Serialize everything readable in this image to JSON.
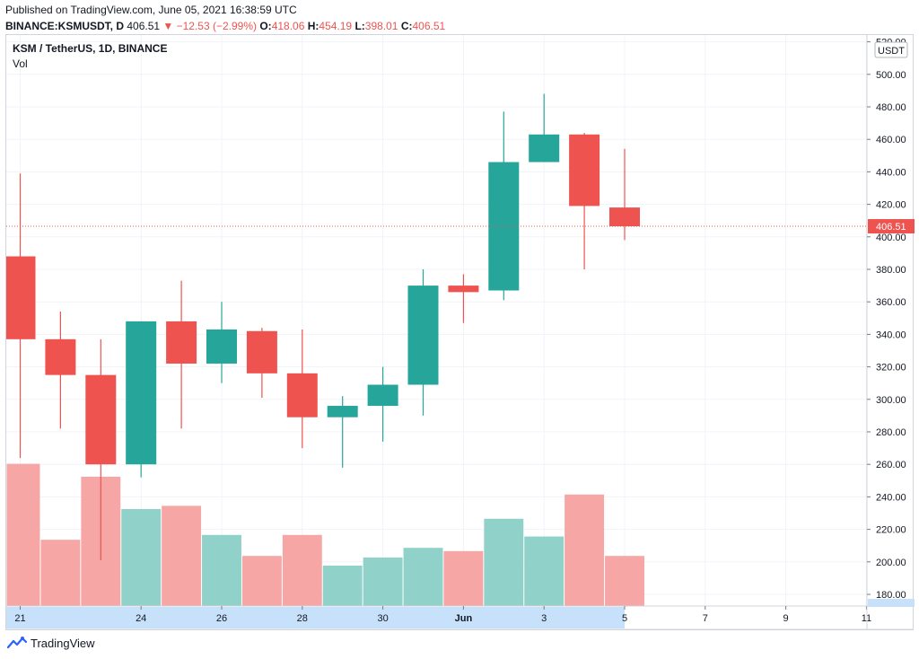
{
  "header": {
    "published": "Published on TradingView.com, June 05, 2021 16:38:59 UTC"
  },
  "ohlc": {
    "symbol_line": "BINANCE:KSMUSDT, D",
    "last": "406.51",
    "change": "▼ −12.53 (−2.99%)",
    "o_label": "O:",
    "o": "418.06",
    "h_label": "H:",
    "h": "454.19",
    "l_label": "L:",
    "l": "398.01",
    "c_label": "C:",
    "c": "406.51"
  },
  "legend": {
    "symbol": "KSM / TetherUS, 1D, BINANCE",
    "vol": "Vol"
  },
  "price_axis": {
    "currency": "USDT",
    "last_price": "406.51"
  },
  "footer": {
    "brand": "TradingView"
  },
  "colors": {
    "up": "#26a69a",
    "down": "#ef5350",
    "vol_up": "#90d1c9",
    "vol_down": "#f5a6a5",
    "grid": "#f0f3fa",
    "axis_bg": "#c8e1fa"
  },
  "chart_data": {
    "type": "candlestick",
    "title": "KSM / TetherUS, 1D, BINANCE",
    "ylim": [
      170,
      520
    ],
    "y_ticks": [
      180,
      200,
      220,
      240,
      260,
      280,
      300,
      320,
      340,
      360,
      380,
      400,
      420,
      440,
      460,
      480,
      500,
      520
    ],
    "x_ticks": [
      {
        "label": "21",
        "day": 0
      },
      {
        "label": "24",
        "day": 3
      },
      {
        "label": "26",
        "day": 5
      },
      {
        "label": "28",
        "day": 7
      },
      {
        "label": "30",
        "day": 9
      },
      {
        "label": "Jun",
        "day": 11
      },
      {
        "label": "3",
        "day": 13
      },
      {
        "label": "5",
        "day": 15
      },
      {
        "label": "7",
        "day": 17
      },
      {
        "label": "9",
        "day": 19
      },
      {
        "label": "11",
        "day": 21
      }
    ],
    "candles": [
      {
        "day": 0,
        "open": 388,
        "high": 439,
        "low": 264,
        "close": 337,
        "volume_level": 0.88
      },
      {
        "day": 1,
        "open": 337,
        "high": 354,
        "low": 282,
        "close": 315,
        "volume_level": 0.41
      },
      {
        "day": 2,
        "open": 315,
        "high": 337,
        "low": 201,
        "close": 260,
        "volume_level": 0.8
      },
      {
        "day": 3,
        "open": 260,
        "high": 348,
        "low": 252,
        "close": 348,
        "volume_level": 0.6
      },
      {
        "day": 4,
        "open": 348,
        "high": 373,
        "low": 282,
        "close": 322,
        "volume_level": 0.62
      },
      {
        "day": 5,
        "open": 322,
        "high": 360,
        "low": 310,
        "close": 343,
        "volume_level": 0.44
      },
      {
        "day": 6,
        "open": 342,
        "high": 344,
        "low": 301,
        "close": 316,
        "volume_level": 0.31
      },
      {
        "day": 7,
        "open": 316,
        "high": 343,
        "low": 270,
        "close": 289,
        "volume_level": 0.44
      },
      {
        "day": 8,
        "open": 289,
        "high": 302,
        "low": 258,
        "close": 296,
        "volume_level": 0.25
      },
      {
        "day": 9,
        "open": 296,
        "high": 320,
        "low": 274,
        "close": 309,
        "volume_level": 0.3
      },
      {
        "day": 10,
        "open": 309,
        "high": 380,
        "low": 290,
        "close": 370,
        "volume_level": 0.36
      },
      {
        "day": 11,
        "open": 370,
        "high": 377,
        "low": 347,
        "close": 366,
        "volume_level": 0.34
      },
      {
        "day": 12,
        "open": 367,
        "high": 477,
        "low": 361,
        "close": 446,
        "volume_level": 0.54
      },
      {
        "day": 13,
        "open": 446,
        "high": 488,
        "low": 446,
        "close": 463,
        "volume_level": 0.43
      },
      {
        "day": 14,
        "open": 463,
        "high": 464,
        "low": 380,
        "close": 419,
        "volume_level": 0.69
      },
      {
        "day": 15,
        "open": 418.06,
        "high": 454.19,
        "low": 398.01,
        "close": 406.51,
        "volume_level": 0.31
      }
    ]
  }
}
